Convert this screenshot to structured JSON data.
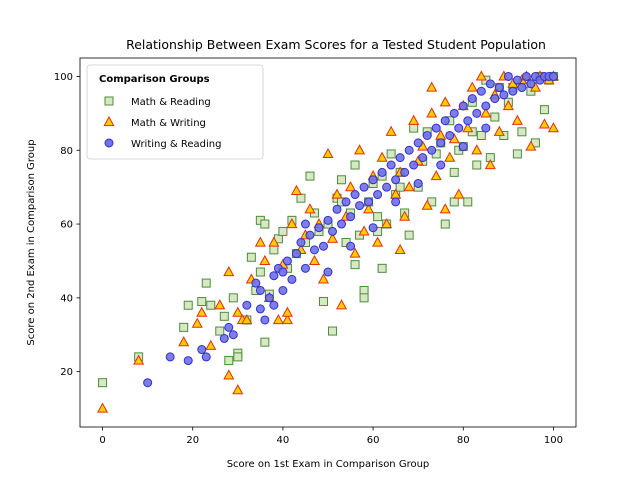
{
  "chart_data": {
    "type": "scatter",
    "title": "Relationship Between Exam Scores for a Tested Student Population",
    "xlabel": "Score on 1st Exam in Comparison Group",
    "ylabel": "Score on 2nd Exam in Comparison Group",
    "xlim": [
      -5,
      105
    ],
    "ylim": [
      5,
      105
    ],
    "xticks": [
      "0",
      "20",
      "40",
      "60",
      "80",
      "100"
    ],
    "yticks": [
      "20",
      "40",
      "60",
      "80",
      "100"
    ],
    "grid": false,
    "legend": {
      "title": "Comparison Groups",
      "placement": "upper-left"
    },
    "series": [
      {
        "name": "Math & Reading",
        "marker": "square",
        "fill": "#d9e8c4",
        "stroke": "#4c8c3c",
        "points": [
          [
            0,
            17
          ],
          [
            8,
            24
          ],
          [
            18,
            32
          ],
          [
            19,
            38
          ],
          [
            22,
            39
          ],
          [
            23,
            44
          ],
          [
            24,
            38
          ],
          [
            26,
            31
          ],
          [
            27,
            35
          ],
          [
            28,
            23
          ],
          [
            29,
            40
          ],
          [
            30,
            25
          ],
          [
            30,
            24
          ],
          [
            32,
            34
          ],
          [
            33,
            51
          ],
          [
            34,
            42
          ],
          [
            35,
            61
          ],
          [
            35,
            47
          ],
          [
            36,
            28
          ],
          [
            37,
            41
          ],
          [
            38,
            53
          ],
          [
            39,
            56
          ],
          [
            40,
            58
          ],
          [
            41,
            48
          ],
          [
            42,
            61
          ],
          [
            43,
            52
          ],
          [
            44,
            67
          ],
          [
            45,
            55
          ],
          [
            46,
            73
          ],
          [
            47,
            63
          ],
          [
            48,
            58
          ],
          [
            49,
            39
          ],
          [
            50,
            60
          ],
          [
            51,
            31
          ],
          [
            52,
            67
          ],
          [
            53,
            72
          ],
          [
            54,
            55
          ],
          [
            55,
            63
          ],
          [
            56,
            76
          ],
          [
            57,
            57
          ],
          [
            58,
            42
          ],
          [
            59,
            66
          ],
          [
            60,
            71
          ],
          [
            61,
            62
          ],
          [
            62,
            73
          ],
          [
            63,
            60
          ],
          [
            64,
            79
          ],
          [
            65,
            68
          ],
          [
            66,
            74
          ],
          [
            67,
            63
          ],
          [
            68,
            57
          ],
          [
            69,
            86
          ],
          [
            70,
            70
          ],
          [
            71,
            77
          ],
          [
            72,
            85
          ],
          [
            73,
            66
          ],
          [
            74,
            79
          ],
          [
            75,
            82
          ],
          [
            76,
            60
          ],
          [
            77,
            88
          ],
          [
            78,
            74
          ],
          [
            79,
            80
          ],
          [
            80,
            81
          ],
          [
            81,
            66
          ],
          [
            82,
            93
          ],
          [
            83,
            76
          ],
          [
            84,
            84
          ],
          [
            85,
            99
          ],
          [
            86,
            78
          ],
          [
            87,
            89
          ],
          [
            88,
            97
          ],
          [
            89,
            84
          ],
          [
            90,
            93
          ],
          [
            91,
            97
          ],
          [
            92,
            79
          ],
          [
            93,
            85
          ],
          [
            94,
            98
          ],
          [
            95,
            96
          ],
          [
            96,
            82
          ],
          [
            97,
            100
          ],
          [
            98,
            91
          ],
          [
            99,
            99
          ],
          [
            100,
            100
          ],
          [
            36,
            60
          ],
          [
            53,
            66
          ],
          [
            61,
            58
          ],
          [
            56,
            49
          ],
          [
            66,
            70
          ],
          [
            82,
            85
          ],
          [
            78,
            66
          ],
          [
            62,
            48
          ],
          [
            58,
            40
          ]
        ]
      },
      {
        "name": "Math & Writing",
        "marker": "triangle",
        "fill": "#ffcc00",
        "stroke": "#e03010",
        "points": [
          [
            0,
            10
          ],
          [
            8,
            23
          ],
          [
            18,
            28
          ],
          [
            21,
            33
          ],
          [
            22,
            36
          ],
          [
            24,
            27
          ],
          [
            26,
            38
          ],
          [
            28,
            19
          ],
          [
            28,
            47
          ],
          [
            30,
            15
          ],
          [
            30,
            36
          ],
          [
            31,
            34
          ],
          [
            32,
            34
          ],
          [
            33,
            45
          ],
          [
            35,
            55
          ],
          [
            36,
            50
          ],
          [
            37,
            40
          ],
          [
            38,
            55
          ],
          [
            39,
            34
          ],
          [
            40,
            49
          ],
          [
            41,
            34
          ],
          [
            42,
            60
          ],
          [
            43,
            69
          ],
          [
            44,
            53
          ],
          [
            45,
            57
          ],
          [
            46,
            64
          ],
          [
            47,
            50
          ],
          [
            48,
            60
          ],
          [
            49,
            45
          ],
          [
            50,
            79
          ],
          [
            51,
            56
          ],
          [
            52,
            68
          ],
          [
            53,
            38
          ],
          [
            54,
            62
          ],
          [
            55,
            70
          ],
          [
            56,
            52
          ],
          [
            57,
            80
          ],
          [
            58,
            58
          ],
          [
            59,
            64
          ],
          [
            60,
            73
          ],
          [
            61,
            55
          ],
          [
            62,
            78
          ],
          [
            63,
            60
          ],
          [
            64,
            85
          ],
          [
            65,
            68
          ],
          [
            66,
            74
          ],
          [
            67,
            62
          ],
          [
            68,
            70
          ],
          [
            69,
            88
          ],
          [
            70,
            77
          ],
          [
            71,
            81
          ],
          [
            72,
            65
          ],
          [
            73,
            90
          ],
          [
            74,
            73
          ],
          [
            75,
            84
          ],
          [
            76,
            93
          ],
          [
            77,
            78
          ],
          [
            78,
            83
          ],
          [
            79,
            68
          ],
          [
            80,
            92
          ],
          [
            81,
            86
          ],
          [
            82,
            97
          ],
          [
            83,
            80
          ],
          [
            84,
            100
          ],
          [
            85,
            90
          ],
          [
            86,
            76
          ],
          [
            87,
            95
          ],
          [
            88,
            85
          ],
          [
            89,
            100
          ],
          [
            90,
            92
          ],
          [
            91,
            98
          ],
          [
            92,
            88
          ],
          [
            93,
            99
          ],
          [
            94,
            100
          ],
          [
            95,
            81
          ],
          [
            96,
            97
          ],
          [
            97,
            100
          ],
          [
            98,
            87
          ],
          [
            99,
            99
          ],
          [
            100,
            100
          ],
          [
            100,
            86
          ],
          [
            73,
            97
          ],
          [
            66,
            53
          ],
          [
            41,
            36
          ],
          [
            76,
            64
          ]
        ]
      },
      {
        "name": "Writing & Reading",
        "marker": "circle",
        "fill": "#7070e8",
        "stroke": "#3030cc",
        "points": [
          [
            10,
            17
          ],
          [
            15,
            24
          ],
          [
            19,
            23
          ],
          [
            22,
            26
          ],
          [
            23,
            24
          ],
          [
            27,
            29
          ],
          [
            28,
            32
          ],
          [
            29,
            30
          ],
          [
            32,
            38
          ],
          [
            34,
            44
          ],
          [
            35,
            37
          ],
          [
            36,
            34
          ],
          [
            37,
            40
          ],
          [
            38,
            46
          ],
          [
            39,
            48
          ],
          [
            40,
            42
          ],
          [
            41,
            50
          ],
          [
            42,
            45
          ],
          [
            43,
            52
          ],
          [
            44,
            55
          ],
          [
            45,
            48
          ],
          [
            46,
            57
          ],
          [
            47,
            53
          ],
          [
            48,
            59
          ],
          [
            49,
            54
          ],
          [
            50,
            61
          ],
          [
            51,
            58
          ],
          [
            52,
            64
          ],
          [
            53,
            60
          ],
          [
            54,
            66
          ],
          [
            55,
            62
          ],
          [
            56,
            68
          ],
          [
            57,
            65
          ],
          [
            58,
            70
          ],
          [
            59,
            66
          ],
          [
            60,
            72
          ],
          [
            61,
            68
          ],
          [
            62,
            74
          ],
          [
            63,
            70
          ],
          [
            64,
            76
          ],
          [
            65,
            72
          ],
          [
            66,
            78
          ],
          [
            67,
            74
          ],
          [
            68,
            80
          ],
          [
            69,
            76
          ],
          [
            70,
            82
          ],
          [
            71,
            78
          ],
          [
            72,
            84
          ],
          [
            73,
            80
          ],
          [
            74,
            86
          ],
          [
            75,
            82
          ],
          [
            76,
            88
          ],
          [
            77,
            84
          ],
          [
            78,
            90
          ],
          [
            79,
            86
          ],
          [
            80,
            92
          ],
          [
            81,
            88
          ],
          [
            82,
            94
          ],
          [
            83,
            90
          ],
          [
            84,
            96
          ],
          [
            85,
            92
          ],
          [
            86,
            98
          ],
          [
            87,
            94
          ],
          [
            88,
            97
          ],
          [
            89,
            95
          ],
          [
            90,
            100
          ],
          [
            91,
            96
          ],
          [
            92,
            99
          ],
          [
            93,
            97
          ],
          [
            94,
            100
          ],
          [
            95,
            98
          ],
          [
            96,
            100
          ],
          [
            97,
            99
          ],
          [
            98,
            100
          ],
          [
            99,
            100
          ],
          [
            100,
            100
          ],
          [
            45,
            60
          ],
          [
            55,
            54
          ],
          [
            65,
            66
          ],
          [
            75,
            76
          ],
          [
            85,
            86
          ],
          [
            50,
            47
          ],
          [
            60,
            59
          ],
          [
            70,
            71
          ],
          [
            80,
            81
          ],
          [
            35,
            42
          ],
          [
            40,
            47
          ],
          [
            38,
            38
          ]
        ]
      }
    ]
  }
}
